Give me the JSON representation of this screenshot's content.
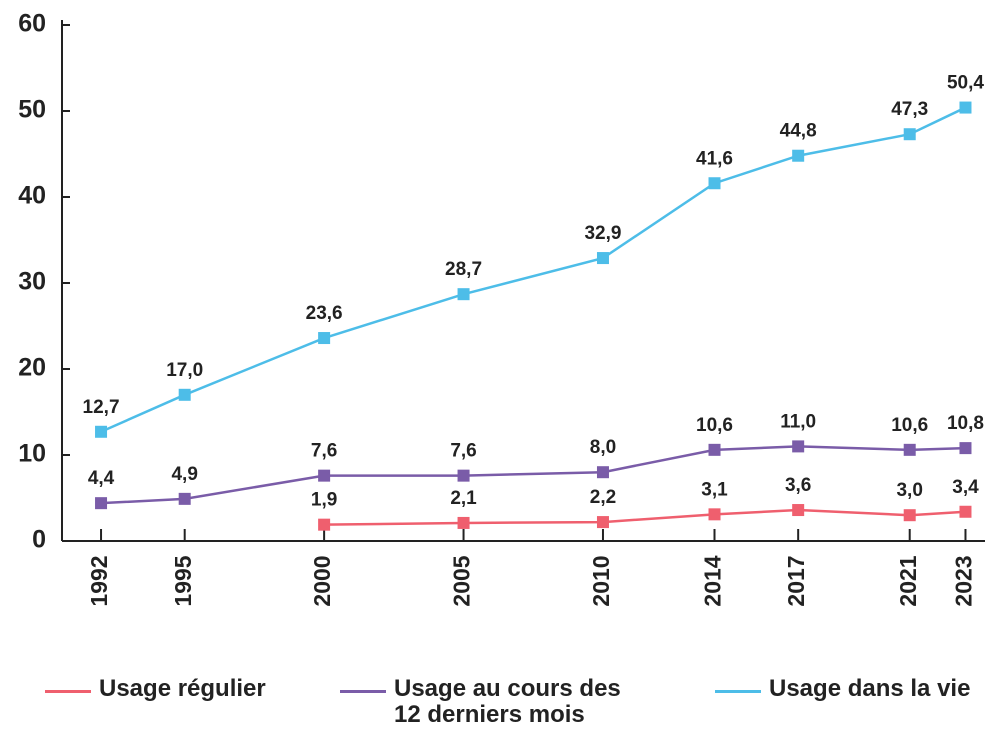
{
  "chart_data": {
    "type": "line",
    "x": [
      1992,
      1995,
      2000,
      2005,
      2010,
      2014,
      2017,
      2021,
      2023
    ],
    "xlim": [
      1990.6,
      2023.7
    ],
    "xticks": [
      1992,
      1995,
      2000,
      2005,
      2010,
      2014,
      2017,
      2021,
      2023
    ],
    "ylim": [
      0,
      60
    ],
    "yticks": [
      0,
      10,
      20,
      30,
      40,
      50,
      60
    ],
    "series": [
      {
        "name": "Usage régulier",
        "color": "#ef5f6e",
        "values": [
          null,
          null,
          1.9,
          2.1,
          2.2,
          3.1,
          3.6,
          3.0,
          3.4
        ],
        "value_labels": [
          null,
          null,
          "1,9",
          "2,1",
          "2,2",
          "3,1",
          "3,6",
          "3,0",
          "3,4"
        ]
      },
      {
        "name": "Usage au cours des 12 derniers mois",
        "color": "#7a5ca8",
        "values": [
          4.4,
          4.9,
          7.6,
          7.6,
          8.0,
          10.6,
          11.0,
          10.6,
          10.8
        ],
        "value_labels": [
          "4,4",
          "4,9",
          "7,6",
          "7,6",
          "8,0",
          "10,6",
          "11,0",
          "10,6",
          "10,8"
        ]
      },
      {
        "name": "Usage dans la vie",
        "color": "#4dbde8",
        "values": [
          12.7,
          17.0,
          23.6,
          28.7,
          32.9,
          41.6,
          44.8,
          47.3,
          50.4
        ],
        "value_labels": [
          "12,7",
          "17,0",
          "23,6",
          "28,7",
          "32,9",
          "41,6",
          "44,8",
          "47,3",
          "50,4"
        ]
      }
    ]
  }
}
